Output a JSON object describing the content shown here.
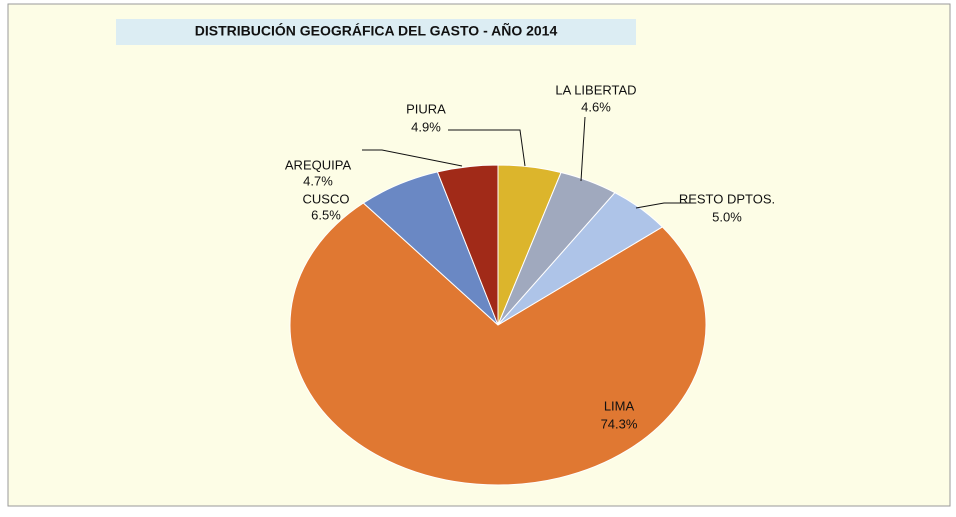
{
  "chart_data": {
    "type": "pie",
    "title": "DISTRIBUCIÓN  GEOGRÁFICA DEL GASTO - AÑO 2014",
    "categories": [
      "LIMA",
      "CUSCO",
      "AREQUIPA",
      "PIURA",
      "LA LIBERTAD",
      "RESTO DPTOS."
    ],
    "values": [
      74.3,
      6.5,
      4.7,
      4.9,
      4.6,
      5.0
    ],
    "value_labels": [
      "74.3%",
      "6.5%",
      "4.7%",
      "4.9%",
      "4.6%",
      "5.0%"
    ],
    "colors": [
      "#e07832",
      "#6a88c4",
      "#a12a18",
      "#dcb52c",
      "#a0a9be",
      "#aec4e8"
    ]
  }
}
